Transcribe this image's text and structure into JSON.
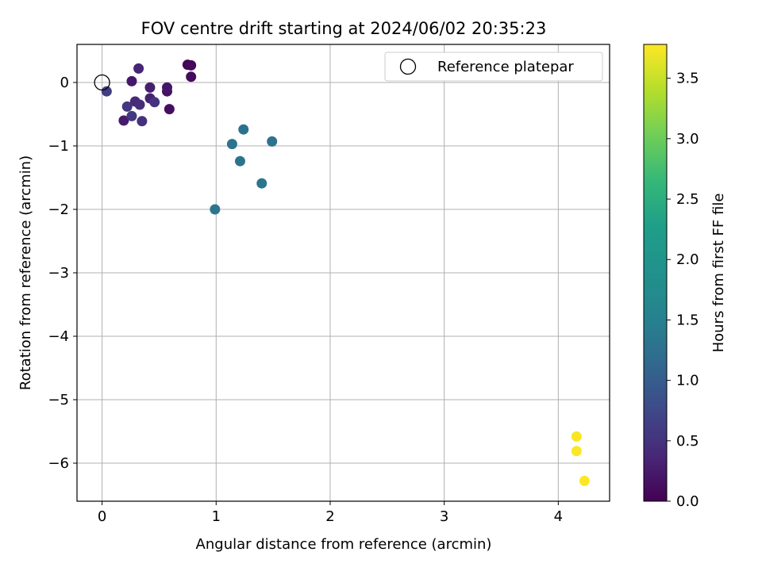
{
  "chart_data": {
    "type": "scatter",
    "title": "FOV centre drift starting at 2024/06/02 20:35:23",
    "xlabel": "Angular distance from reference (arcmin)",
    "ylabel": "Rotation from reference (arcmin)",
    "xlim": [
      -0.22,
      4.45
    ],
    "ylim": [
      -6.6,
      0.6
    ],
    "xticks": [
      0,
      1,
      2,
      3,
      4
    ],
    "yticks": [
      0,
      -1,
      -2,
      -3,
      -4,
      -5,
      -6
    ],
    "grid": true,
    "legend": {
      "placement": "top-right",
      "entries": [
        "Reference platepar"
      ]
    },
    "reference_point": {
      "x": 0,
      "y": 0,
      "label": "Reference platepar"
    },
    "colorbar": {
      "label": "Hours from first FF file",
      "colormap": "viridis",
      "range": [
        0.0,
        3.78
      ],
      "ticks": [
        0.0,
        0.5,
        1.0,
        1.5,
        2.0,
        2.5,
        3.0,
        3.5
      ]
    },
    "points": [
      {
        "x": 0.75,
        "y": 0.28,
        "c": 0.05
      },
      {
        "x": 0.78,
        "y": 0.27,
        "c": 0.08
      },
      {
        "x": 0.78,
        "y": 0.09,
        "c": 0.1
      },
      {
        "x": 0.59,
        "y": -0.42,
        "c": 0.15
      },
      {
        "x": 0.57,
        "y": -0.14,
        "c": 0.18
      },
      {
        "x": 0.57,
        "y": -0.08,
        "c": 0.22
      },
      {
        "x": 0.26,
        "y": 0.02,
        "c": 0.25
      },
      {
        "x": 0.19,
        "y": -0.6,
        "c": 0.28
      },
      {
        "x": 0.42,
        "y": -0.08,
        "c": 0.32
      },
      {
        "x": 0.42,
        "y": -0.25,
        "c": 0.36
      },
      {
        "x": 0.32,
        "y": 0.22,
        "c": 0.4
      },
      {
        "x": 0.29,
        "y": -0.3,
        "c": 0.44
      },
      {
        "x": 0.33,
        "y": -0.35,
        "c": 0.48
      },
      {
        "x": 0.35,
        "y": -0.61,
        "c": 0.52
      },
      {
        "x": 0.46,
        "y": -0.31,
        "c": 0.56
      },
      {
        "x": 0.22,
        "y": -0.38,
        "c": 0.6
      },
      {
        "x": 0.26,
        "y": -0.53,
        "c": 0.64
      },
      {
        "x": 0.04,
        "y": -0.14,
        "c": 0.68
      },
      {
        "x": 1.24,
        "y": -0.74,
        "c": 1.4
      },
      {
        "x": 1.49,
        "y": -0.93,
        "c": 1.42
      },
      {
        "x": 1.14,
        "y": -0.97,
        "c": 1.44
      },
      {
        "x": 1.21,
        "y": -1.24,
        "c": 1.45
      },
      {
        "x": 1.4,
        "y": -1.59,
        "c": 1.47
      },
      {
        "x": 0.99,
        "y": -2.0,
        "c": 1.49
      },
      {
        "x": 4.16,
        "y": -5.58,
        "c": 3.75
      },
      {
        "x": 4.16,
        "y": -5.81,
        "c": 3.76
      },
      {
        "x": 4.23,
        "y": -6.28,
        "c": 3.78
      }
    ]
  }
}
